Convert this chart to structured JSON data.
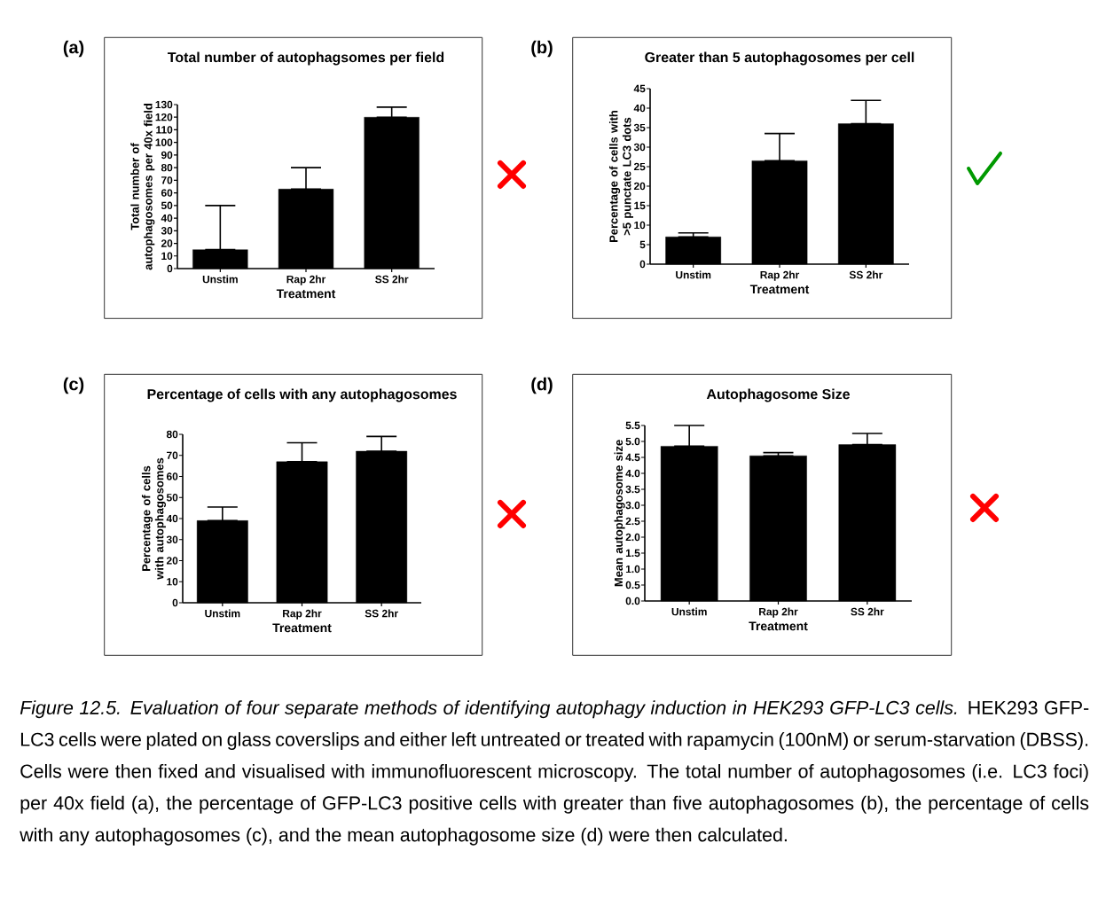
{
  "chart_data": [
    {
      "type": "bar",
      "title": "Total number of  autophagsomes per field",
      "xlabel": "Treatment",
      "ylabel": "Total number of autophagosomes per 40x field",
      "categories": [
        "Unstim",
        "Rap 2hr",
        "SS 2hr"
      ],
      "values": [
        15,
        63,
        120
      ],
      "errors": [
        [
          15,
          50
        ],
        [
          63,
          80
        ],
        [
          120,
          128
        ]
      ],
      "color": "#000000",
      "ylim": [
        0,
        130
      ],
      "yticks": [
        0,
        10,
        20,
        30,
        40,
        50,
        60,
        70,
        80,
        90,
        100,
        110,
        120,
        130
      ],
      "annotations": [
        "(a)"
      ]
    },
    {
      "type": "bar",
      "title": "Greater than 5 autophagosomes per cell",
      "xlabel": "Treatment",
      "ylabel": "Percentage of cells with >5 punctate LC3 dots",
      "categories": [
        "Unstim",
        "Rap 2hr",
        "SS 2hr"
      ],
      "values": [
        7,
        26.5,
        36
      ],
      "errors": [
        [
          7,
          8
        ],
        [
          26.5,
          33.5
        ],
        [
          36,
          42
        ]
      ],
      "color": "#000000",
      "ylim": [
        0,
        45
      ],
      "yticks": [
        0,
        5,
        10,
        15,
        20,
        25,
        30,
        35,
        40,
        45
      ],
      "annotations": [
        "(b)"
      ]
    },
    {
      "type": "bar",
      "title": "Percentage of cells with any autophagosomes",
      "xlabel": "Treatment",
      "ylabel": "Percentage of cells with autophagosomes",
      "categories": [
        "Unstim",
        "Rap 2hr",
        "SS 2hr"
      ],
      "values": [
        39,
        67,
        72
      ],
      "errors": [
        [
          39,
          45.5
        ],
        [
          67,
          76
        ],
        [
          72,
          79
        ]
      ],
      "color": "#000000",
      "ylim": [
        0,
        80
      ],
      "yticks": [
        0,
        10,
        20,
        30,
        40,
        50,
        60,
        70,
        80
      ],
      "annotations": [
        "(c)"
      ]
    },
    {
      "type": "bar",
      "title": "Autophagosome Size",
      "xlabel": "Treatment",
      "ylabel": "Mean autophagosome size",
      "categories": [
        "Unstim",
        "Rap 2hr",
        "SS 2hr"
      ],
      "values": [
        4.85,
        4.55,
        4.9
      ],
      "errors": [
        [
          4.85,
          5.5
        ],
        [
          4.55,
          4.65
        ],
        [
          4.9,
          5.25
        ]
      ],
      "color": "#000000",
      "ylim": [
        0,
        5.5
      ],
      "yticks": [
        {
          "value": 0,
          "label": "0.0"
        },
        {
          "value": 0.5,
          "label": "0.5"
        },
        {
          "value": 1,
          "label": "1.0"
        },
        {
          "value": 1.5,
          "label": "1.5"
        },
        {
          "value": 2,
          "label": "2.0"
        },
        {
          "value": 2.5,
          "label": "2.5"
        },
        {
          "value": 3,
          "label": "3.0"
        },
        {
          "value": 3.5,
          "label": "3.5"
        },
        {
          "value": 4,
          "label": "4.0"
        },
        {
          "value": 4.5,
          "label": "4.5"
        },
        {
          "value": 5,
          "label": "5.0"
        },
        {
          "value": 5.5,
          "label": "5.5"
        }
      ],
      "annotations": [
        "(d)",
        "*Figure 12.5.  Evaluation of four separate methods of identifying autophagy induction in HEK293 GFP-LC3 cells.* HEK293 GFP-LC3 cells were plated on glass coverslips and either left untreated or treated with rapamycin (100nM) or serum-starvation (DBSS). Cells were then fixed and visualised with immunofluorescent microscopy. The total number of autophagosomes (i.e. LC3 foci) per 40x field (a), the percentage of GFP-LC3 positive cells with greater than five autophagosomes (b), the percentage of cells with any autophagosomes (c), and the mean autophagosome size (d) were then calculated."
      ]
    }
  ]
}
